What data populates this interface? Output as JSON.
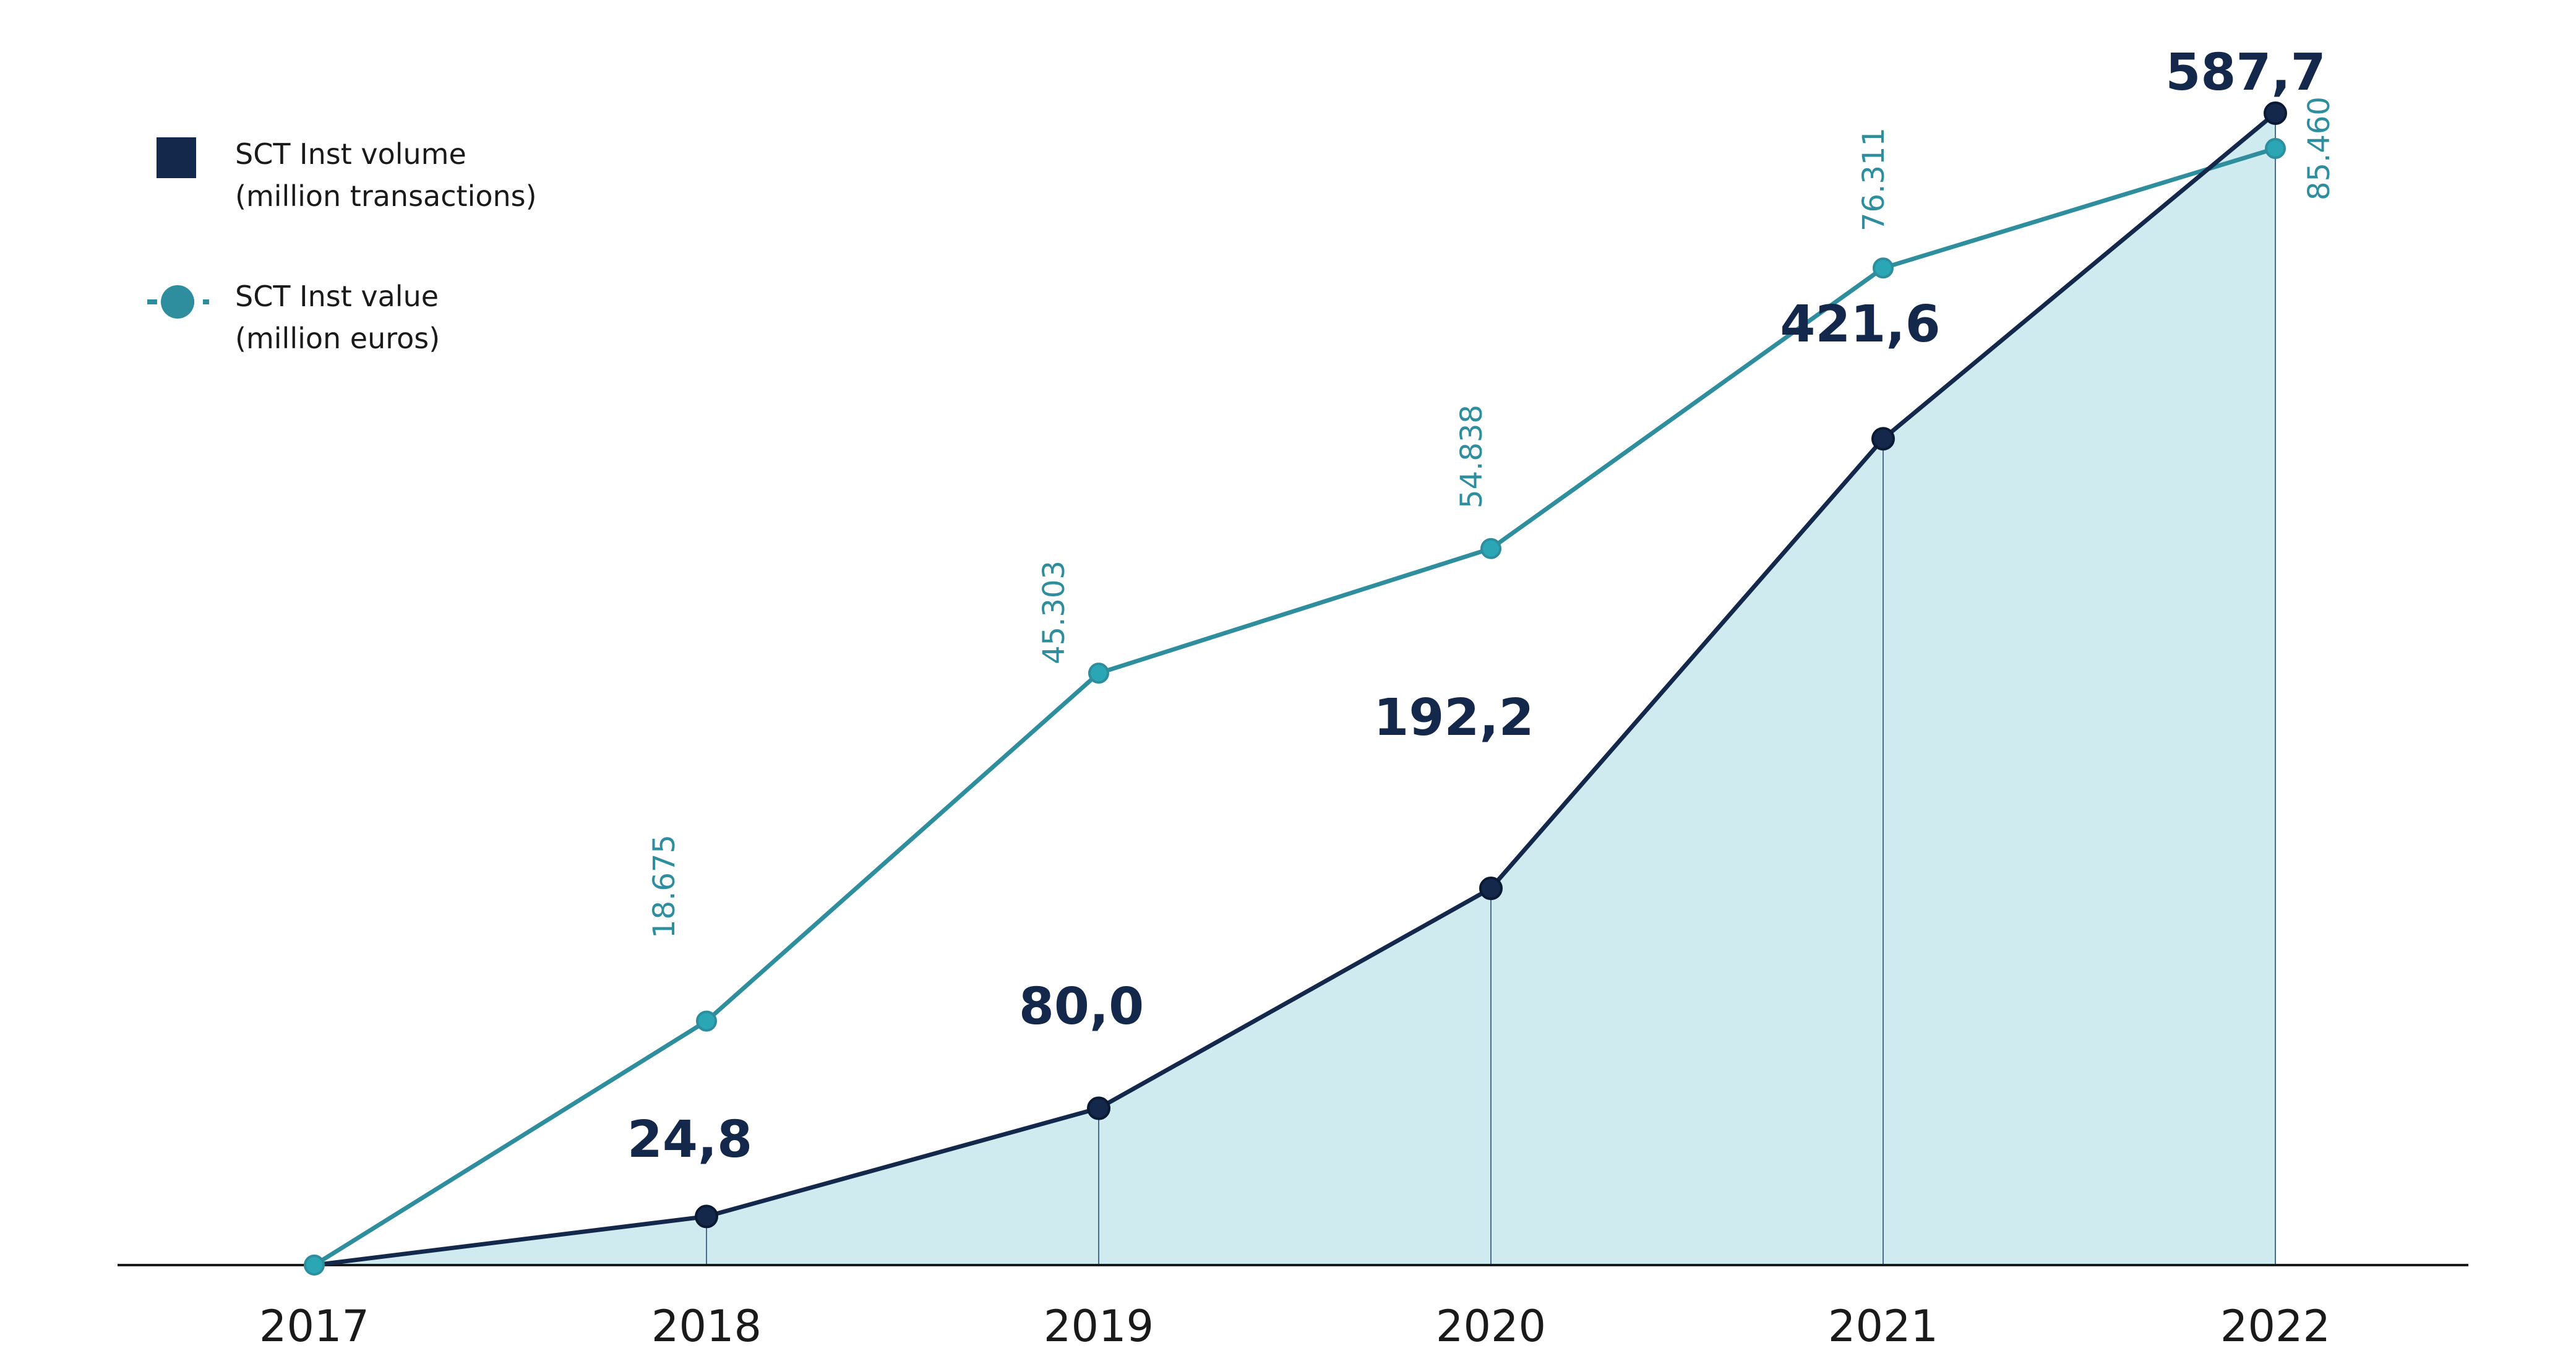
{
  "chart_data": {
    "type": "area",
    "categories": [
      "2017",
      "2018",
      "2019",
      "2020",
      "2021",
      "2022"
    ],
    "series": [
      {
        "name": "SCT Inst volume (million transactions)",
        "values": [
          0,
          24.8,
          80.0,
          192.2,
          421.6,
          587.7
        ],
        "labels": [
          "",
          "24,8",
          "80,0",
          "192,2",
          "421,6",
          "587,7"
        ],
        "color": "#14284b",
        "fill": "#d0ebf0"
      },
      {
        "name": "SCT Inst value (million euros)",
        "values": [
          0,
          18675,
          45303,
          54838,
          76311,
          85460
        ],
        "labels": [
          "",
          "18.675",
          "45.303",
          "54.838",
          "76.311",
          "85.460"
        ],
        "color": "#2f8e9e"
      }
    ],
    "legend": {
      "position": "top-left",
      "items": [
        {
          "line1": "SCT Inst volume",
          "line2": "(million transactions)"
        },
        {
          "line1": "SCT Inst value",
          "line2": "(million euros)"
        }
      ]
    },
    "ylim_volume": [
      0,
      587.7
    ],
    "ylim_value": [
      0,
      85460
    ],
    "grid": false,
    "title": "",
    "xlabel": "",
    "ylabel": ""
  }
}
